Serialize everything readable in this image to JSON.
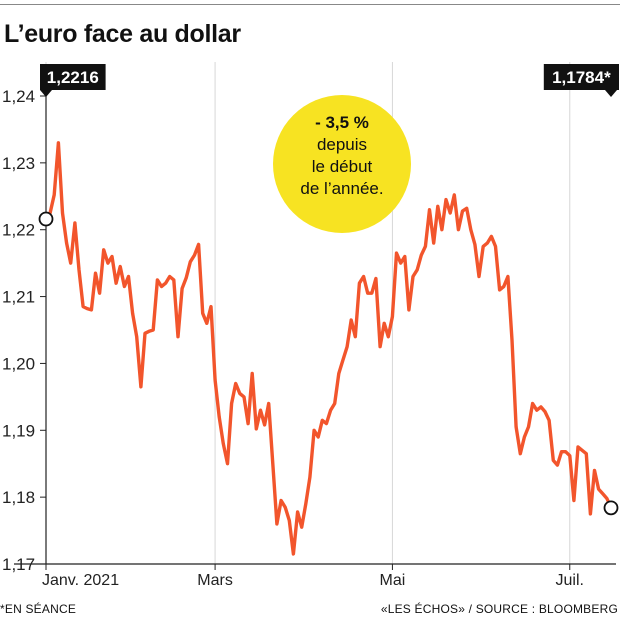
{
  "header": {
    "title": "L’euro face au dollar"
  },
  "annotation": {
    "headline": "- 3,5 %",
    "lines": [
      "depuis",
      "le début",
      "de l’année."
    ]
  },
  "footer": {
    "note": "*EN SÉANCE",
    "source": "«LES ÉCHOS» / SOURCE : BLOOMBERG"
  },
  "colors": {
    "line": "#f2552c",
    "bubble": "#f7e322",
    "label_bg": "#111111"
  },
  "chart_data": {
    "type": "line",
    "title": "L’euro face au dollar",
    "xlabel": "",
    "ylabel": "",
    "ylim": [
      1.17,
      1.24
    ],
    "yticks": [
      1.17,
      1.18,
      1.19,
      1.2,
      1.21,
      1.22,
      1.23,
      1.24
    ],
    "ytick_labels": [
      "1,17",
      "1,18",
      "1,19",
      "1,20",
      "1,21",
      "1,22",
      "1,23",
      "1,24"
    ],
    "xtick_labels": [
      {
        "label": "Janv. 2021",
        "index": 0
      },
      {
        "label": "Mars",
        "index": 41
      },
      {
        "label": "Mai",
        "index": 84
      },
      {
        "label": "Juil.",
        "index": 127
      }
    ],
    "grid": "vertical",
    "start_label": "1,2216",
    "end_label": "1,1784*",
    "series": [
      {
        "values": [
          1.2216,
          1.2225,
          1.2252,
          1.233,
          1.2225,
          1.218,
          1.215,
          1.221,
          1.214,
          1.2085,
          1.2082,
          1.208,
          1.2135,
          1.2105,
          1.217,
          1.215,
          1.216,
          1.212,
          1.2145,
          1.2115,
          1.213,
          1.2075,
          1.204,
          1.1965,
          1.2045,
          1.2048,
          1.205,
          1.2125,
          1.2115,
          1.212,
          1.213,
          1.2125,
          1.204,
          1.2112,
          1.2128,
          1.2152,
          1.2162,
          1.2178,
          1.2075,
          1.206,
          1.2085,
          1.1975,
          1.192,
          1.188,
          1.185,
          1.194,
          1.197,
          1.1955,
          1.195,
          1.191,
          1.1985,
          1.1902,
          1.193,
          1.1908,
          1.194,
          1.185,
          1.176,
          1.1795,
          1.1785,
          1.1765,
          1.1715,
          1.1778,
          1.1755,
          1.179,
          1.183,
          1.19,
          1.189,
          1.1915,
          1.191,
          1.193,
          1.194,
          1.1985,
          1.2005,
          1.2025,
          1.2065,
          1.204,
          1.212,
          1.213,
          1.2105,
          1.2105,
          1.2127,
          1.2025,
          1.206,
          1.204,
          1.207,
          1.2165,
          1.215,
          1.216,
          1.208,
          1.213,
          1.214,
          1.2162,
          1.2175,
          1.223,
          1.218,
          1.2235,
          1.22,
          1.2245,
          1.2225,
          1.2252,
          1.22,
          1.2228,
          1.2232,
          1.22,
          1.2178,
          1.213,
          1.2175,
          1.218,
          1.219,
          1.2175,
          1.211,
          1.2115,
          1.213,
          1.2035,
          1.1905,
          1.1865,
          1.189,
          1.1905,
          1.194,
          1.193,
          1.1935,
          1.1928,
          1.1915,
          1.1855,
          1.1848,
          1.1868,
          1.1868,
          1.1862,
          1.1795,
          1.1875,
          1.187,
          1.1865,
          1.1775,
          1.184,
          1.1812,
          1.1805,
          1.1798,
          1.1784
        ]
      }
    ]
  }
}
